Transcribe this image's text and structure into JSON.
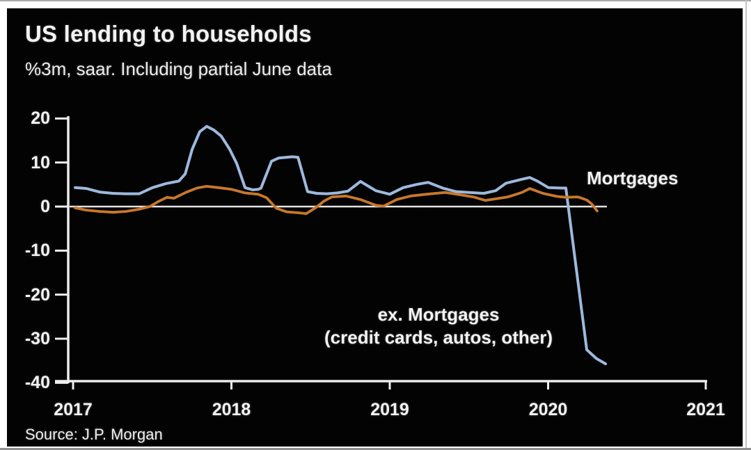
{
  "page": {
    "title": "US lending to households",
    "subtitle": "%3m, saar. Including partial June data",
    "source": "Source: J.P. Morgan"
  },
  "colors": {
    "background": "#030303",
    "text": "#f3f3f3",
    "axis": "#ededed",
    "zero_line": "#e2e2e2",
    "mortgages_line": "#c9782a",
    "ex_mortgages_line": "#9db9de"
  },
  "chart_data": {
    "type": "line",
    "title": "US lending to households",
    "subtitle": "%3m, saar. Including partial June data",
    "source": "Source: J.P. Morgan",
    "xlabel": "",
    "ylabel": "%3m, saar",
    "x_unit": "decimal_year",
    "xlim": [
      2017,
      2021
    ],
    "ylim": [
      -40,
      20
    ],
    "y_ticks": [
      20,
      10,
      0,
      -10,
      -20,
      -30,
      -40
    ],
    "x_ticks": [
      2017,
      2018,
      2019,
      2020,
      2021
    ],
    "grid": false,
    "zero_line": true,
    "legend_position": "inline-annotations",
    "annotations": [
      {
        "text": "Mortgages",
        "x": 2020.25,
        "y": 6.2
      },
      {
        "text": "ex. Mortgages",
        "x": 2019.3,
        "y": -23.5
      },
      {
        "text": "(credit cards, autos, other)",
        "x": 2019.3,
        "y": -29.0
      }
    ],
    "series": [
      {
        "name": "ex. Mortgages (credit cards, autos, other)",
        "color": "#9db9de",
        "points": [
          [
            2017.013,
            4.3
          ],
          [
            2017.084,
            4.1
          ],
          [
            2017.167,
            3.3
          ],
          [
            2017.251,
            3.0
          ],
          [
            2017.334,
            2.9
          ],
          [
            2017.418,
            2.9
          ],
          [
            2017.501,
            4.3
          ],
          [
            2017.585,
            5.2
          ],
          [
            2017.668,
            5.8
          ],
          [
            2017.708,
            7.4
          ],
          [
            2017.752,
            13.0
          ],
          [
            2017.8,
            17.0
          ],
          [
            2017.844,
            18.2
          ],
          [
            2017.888,
            17.4
          ],
          [
            2017.936,
            16.0
          ],
          [
            2017.989,
            13.0
          ],
          [
            2018.033,
            9.8
          ],
          [
            2018.086,
            4.3
          ],
          [
            2018.134,
            3.8
          ],
          [
            2018.169,
            3.9
          ],
          [
            2018.187,
            4.2
          ],
          [
            2018.253,
            10.3
          ],
          [
            2018.297,
            11.0
          ],
          [
            2018.385,
            11.3
          ],
          [
            2018.42,
            11.2
          ],
          [
            2018.481,
            3.4
          ],
          [
            2018.538,
            3.0
          ],
          [
            2018.604,
            2.9
          ],
          [
            2018.67,
            3.1
          ],
          [
            2018.736,
            3.5
          ],
          [
            2018.815,
            5.7
          ],
          [
            2018.912,
            3.6
          ],
          [
            2019.0,
            2.8
          ],
          [
            2019.084,
            4.3
          ],
          [
            2019.167,
            5.0
          ],
          [
            2019.242,
            5.5
          ],
          [
            2019.334,
            4.2
          ],
          [
            2019.418,
            3.4
          ],
          [
            2019.501,
            3.2
          ],
          [
            2019.593,
            3.0
          ],
          [
            2019.668,
            3.6
          ],
          [
            2019.734,
            5.3
          ],
          [
            2019.835,
            6.2
          ],
          [
            2019.884,
            6.6
          ],
          [
            2019.932,
            5.8
          ],
          [
            2020.002,
            4.3
          ],
          [
            2020.081,
            4.2
          ],
          [
            2020.112,
            4.2
          ],
          [
            2020.244,
            -32.5
          ],
          [
            2020.305,
            -34.5
          ],
          [
            2020.363,
            -35.7
          ]
        ]
      },
      {
        "name": "Mortgages",
        "color": "#c9782a",
        "points": [
          [
            2017.013,
            -0.3
          ],
          [
            2017.084,
            -0.8
          ],
          [
            2017.167,
            -1.1
          ],
          [
            2017.251,
            -1.3
          ],
          [
            2017.334,
            -1.1
          ],
          [
            2017.418,
            -0.6
          ],
          [
            2017.484,
            0.0
          ],
          [
            2017.541,
            1.2
          ],
          [
            2017.593,
            2.1
          ],
          [
            2017.637,
            1.9
          ],
          [
            2017.712,
            3.2
          ],
          [
            2017.782,
            4.2
          ],
          [
            2017.844,
            4.6
          ],
          [
            2017.919,
            4.3
          ],
          [
            2018.002,
            3.9
          ],
          [
            2018.086,
            3.1
          ],
          [
            2018.169,
            2.8
          ],
          [
            2018.222,
            2.0
          ],
          [
            2018.284,
            -0.4
          ],
          [
            2018.349,
            -1.2
          ],
          [
            2018.42,
            -1.4
          ],
          [
            2018.473,
            -1.6
          ],
          [
            2018.538,
            -0.1
          ],
          [
            2018.587,
            1.3
          ],
          [
            2018.635,
            2.2
          ],
          [
            2018.723,
            2.4
          ],
          [
            2018.815,
            1.6
          ],
          [
            2018.912,
            0.3
          ],
          [
            2018.96,
            0.1
          ],
          [
            2019.044,
            1.6
          ],
          [
            2019.132,
            2.4
          ],
          [
            2019.229,
            2.8
          ],
          [
            2019.352,
            3.2
          ],
          [
            2019.44,
            2.7
          ],
          [
            2019.527,
            2.2
          ],
          [
            2019.602,
            1.4
          ],
          [
            2019.659,
            1.7
          ],
          [
            2019.747,
            2.2
          ],
          [
            2019.835,
            3.2
          ],
          [
            2019.884,
            4.1
          ],
          [
            2019.967,
            3.0
          ],
          [
            2020.055,
            2.3
          ],
          [
            2020.112,
            2.1
          ],
          [
            2020.187,
            2.2
          ],
          [
            2020.244,
            1.5
          ],
          [
            2020.275,
            0.6
          ],
          [
            2020.31,
            -1.0
          ]
        ]
      }
    ]
  }
}
